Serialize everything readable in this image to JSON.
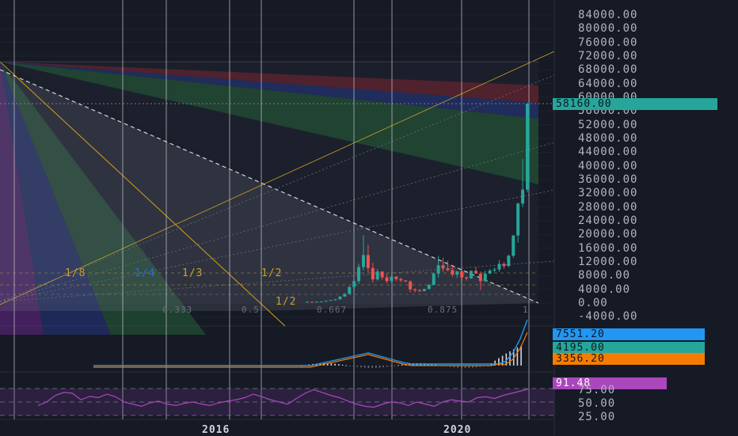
{
  "chart_data": {
    "type": "candlestick",
    "price_axis": {
      "ticks": [
        "84000.00",
        "80000.00",
        "76000.00",
        "72000.00",
        "68000.00",
        "64000.00",
        "60000.00",
        "56000.00",
        "52000.00",
        "48000.00",
        "44000.00",
        "40000.00",
        "36000.00",
        "32000.00",
        "28000.00",
        "24000.00",
        "20000.00",
        "16000.00",
        "12000.00",
        "8000.00",
        "4000.00",
        "0.00",
        "-4000.00"
      ],
      "current_price": "58160.00"
    },
    "time_axis": {
      "labels": [
        "2016",
        "2020"
      ]
    },
    "gann_fan_labels": [
      "1/8",
      "1/4",
      "1/3",
      "1/2",
      "1/2"
    ],
    "fib_time_labels": [
      "0.333",
      "0.5",
      "0.667",
      "0.875",
      "1"
    ],
    "candles": [
      {
        "o": 300,
        "h": 450,
        "l": 200,
        "c": 350
      },
      {
        "o": 350,
        "h": 400,
        "l": 250,
        "c": 300
      },
      {
        "o": 300,
        "h": 420,
        "l": 280,
        "c": 380
      },
      {
        "o": 380,
        "h": 480,
        "l": 350,
        "c": 450
      },
      {
        "o": 450,
        "h": 700,
        "l": 420,
        "c": 650
      },
      {
        "o": 650,
        "h": 900,
        "l": 600,
        "c": 850
      },
      {
        "o": 850,
        "h": 1200,
        "l": 800,
        "c": 1100
      },
      {
        "o": 1100,
        "h": 2000,
        "l": 1000,
        "c": 1900
      },
      {
        "o": 1900,
        "h": 2900,
        "l": 1800,
        "c": 2700
      },
      {
        "o": 2700,
        "h": 4900,
        "l": 2600,
        "c": 4700
      },
      {
        "o": 4700,
        "h": 6500,
        "l": 3900,
        "c": 6400
      },
      {
        "o": 6400,
        "h": 11500,
        "l": 5600,
        "c": 10500
      },
      {
        "o": 10500,
        "h": 19800,
        "l": 9500,
        "c": 14000
      },
      {
        "o": 14000,
        "h": 17000,
        "l": 9000,
        "c": 10200
      },
      {
        "o": 10200,
        "h": 11700,
        "l": 6000,
        "c": 6900
      },
      {
        "o": 6900,
        "h": 9900,
        "l": 6500,
        "c": 9200
      },
      {
        "o": 9200,
        "h": 9300,
        "l": 6800,
        "c": 7500
      },
      {
        "o": 7500,
        "h": 8500,
        "l": 5800,
        "c": 6400
      },
      {
        "o": 6400,
        "h": 8300,
        "l": 5900,
        "c": 7700
      },
      {
        "o": 7700,
        "h": 7800,
        "l": 6400,
        "c": 7000
      },
      {
        "o": 7000,
        "h": 7400,
        "l": 6100,
        "c": 6600
      },
      {
        "o": 6600,
        "h": 6700,
        "l": 6200,
        "c": 6300
      },
      {
        "o": 6300,
        "h": 6600,
        "l": 3200,
        "c": 4000
      },
      {
        "o": 4000,
        "h": 4300,
        "l": 3100,
        "c": 3700
      },
      {
        "o": 3700,
        "h": 4100,
        "l": 3300,
        "c": 3500
      },
      {
        "o": 3500,
        "h": 4200,
        "l": 3400,
        "c": 4100
      },
      {
        "o": 4100,
        "h": 5600,
        "l": 4000,
        "c": 5300
      },
      {
        "o": 5300,
        "h": 8900,
        "l": 5200,
        "c": 8600
      },
      {
        "o": 8600,
        "h": 13800,
        "l": 7500,
        "c": 11000
      },
      {
        "o": 11000,
        "h": 13200,
        "l": 9100,
        "c": 10100
      },
      {
        "o": 10100,
        "h": 12300,
        "l": 9300,
        "c": 9600
      },
      {
        "o": 9600,
        "h": 10900,
        "l": 7700,
        "c": 8300
      },
      {
        "o": 8300,
        "h": 9400,
        "l": 7300,
        "c": 9200
      },
      {
        "o": 9200,
        "h": 9500,
        "l": 6500,
        "c": 7500
      },
      {
        "o": 7500,
        "h": 7700,
        "l": 6600,
        "c": 7200
      },
      {
        "o": 7200,
        "h": 9500,
        "l": 7100,
        "c": 9400
      },
      {
        "o": 9400,
        "h": 10500,
        "l": 8500,
        "c": 8600
      },
      {
        "o": 8600,
        "h": 9200,
        "l": 3800,
        "c": 6400
      },
      {
        "o": 6400,
        "h": 9500,
        "l": 6200,
        "c": 8600
      },
      {
        "o": 8600,
        "h": 10000,
        "l": 8500,
        "c": 9500
      },
      {
        "o": 9500,
        "h": 10400,
        "l": 8900,
        "c": 9800
      },
      {
        "o": 9800,
        "h": 12500,
        "l": 9100,
        "c": 11400
      },
      {
        "o": 11400,
        "h": 12000,
        "l": 10000,
        "c": 10800
      },
      {
        "o": 10800,
        "h": 14100,
        "l": 10500,
        "c": 13800
      },
      {
        "o": 13800,
        "h": 19900,
        "l": 13200,
        "c": 19700
      },
      {
        "o": 19700,
        "h": 29300,
        "l": 17600,
        "c": 29000
      },
      {
        "o": 29000,
        "h": 42000,
        "l": 28000,
        "c": 33100
      },
      {
        "o": 33100,
        "h": 58300,
        "l": 32300,
        "c": 58160
      }
    ],
    "indicators": {
      "macd": {
        "labels": [
          "7551.20",
          "4195.00",
          "3356.20"
        ],
        "colors": [
          "#2196f3",
          "#26a69a",
          "#f57c00"
        ]
      },
      "rsi": {
        "label": "91.48",
        "ticks": [
          "75.00",
          "50.00",
          "25.00"
        ],
        "color": "#ab47bc"
      }
    },
    "colors": {
      "up": "#26a69a",
      "down": "#ef5350",
      "background": "#161a25"
    }
  }
}
